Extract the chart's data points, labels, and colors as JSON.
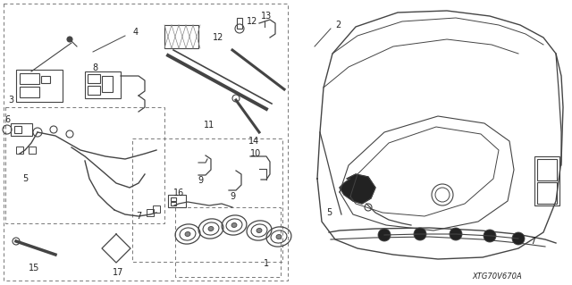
{
  "bg_color": "#ffffff",
  "line_color": "#444444",
  "gray_color": "#888888",
  "text_color": "#222222",
  "diagram_code": "XTG70V670A",
  "figsize": [
    6.4,
    3.19
  ],
  "dpi": 100
}
